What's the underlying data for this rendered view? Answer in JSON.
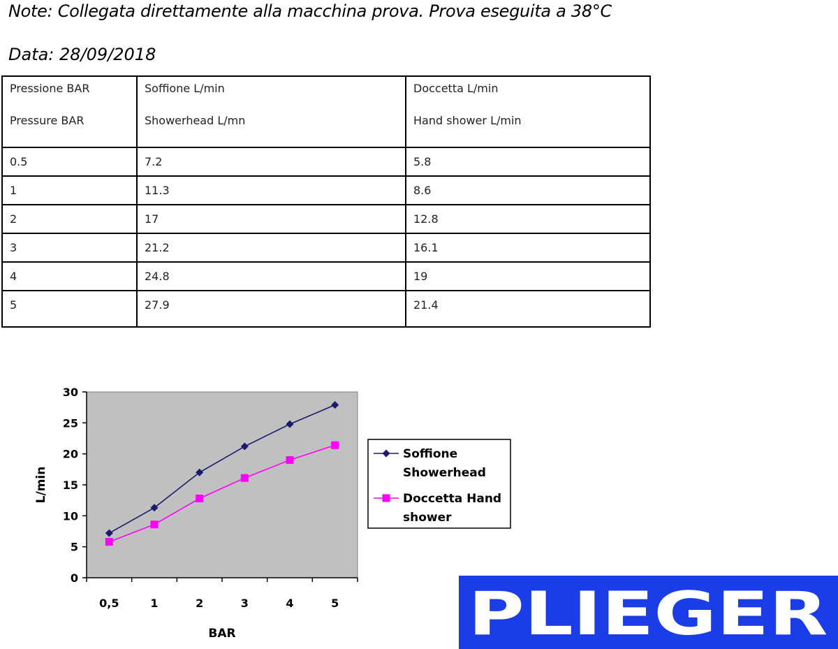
{
  "note": "Note: Collegata direttamente alla macchina prova. Prova eseguita a 38°C",
  "date": "Data: 28/09/2018",
  "table": {
    "headers": [
      [
        "Pressione BAR",
        "Pressure BAR"
      ],
      [
        "Soffione L/min",
        "Showerhead L/mn"
      ],
      [
        "Doccetta L/min",
        "Hand shower L/min"
      ]
    ],
    "rows": [
      [
        "0.5",
        "7.2",
        "5.8"
      ],
      [
        "1",
        "11.3",
        "8.6"
      ],
      [
        "2",
        "17",
        "12.8"
      ],
      [
        "3",
        "21.2",
        "16.1"
      ],
      [
        "4",
        "24.8",
        "19"
      ],
      [
        "5",
        "27.9",
        "21.4"
      ]
    ]
  },
  "chart_data": {
    "type": "line",
    "categories": [
      "0,5",
      "1",
      "2",
      "3",
      "4",
      "5"
    ],
    "series": [
      {
        "name": "Soffione Showerhead",
        "values": [
          7.2,
          11.3,
          17,
          21.2,
          24.8,
          27.9
        ],
        "color": "#1a1a6e",
        "marker": "diamond"
      },
      {
        "name": "Doccetta Hand shower",
        "values": [
          5.8,
          8.6,
          12.8,
          16.1,
          19,
          21.4
        ],
        "color": "#ff00ff",
        "marker": "square"
      }
    ],
    "xlabel": "BAR",
    "ylabel": "L/min",
    "ylim": [
      0,
      30
    ],
    "yticks": [
      0,
      5,
      10,
      15,
      20,
      25,
      30
    ],
    "legend": {
      "placement": "right",
      "entries": [
        [
          "Soffione",
          "Showerhead"
        ],
        [
          "Doccetta Hand",
          "shower"
        ]
      ]
    },
    "plot_background": "#c0c0c0",
    "grid": false
  },
  "logo": {
    "text": "PLIEGER",
    "background": "#1a3de8",
    "color": "#ffffff"
  }
}
